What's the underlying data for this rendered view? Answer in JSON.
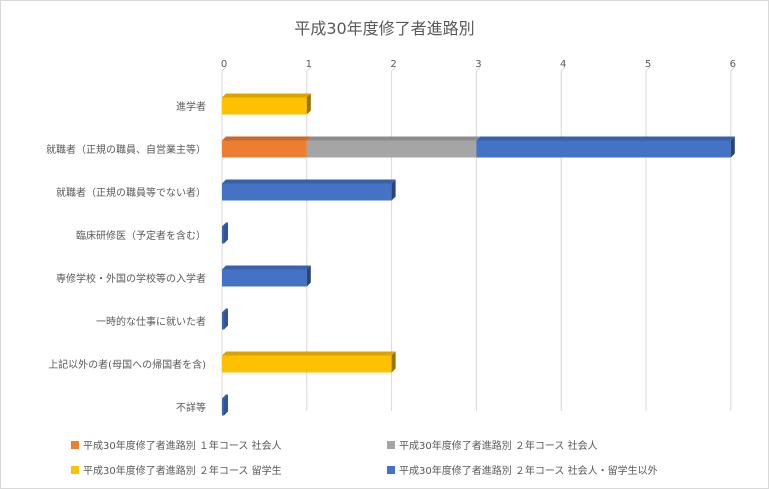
{
  "chart_data": {
    "type": "bar",
    "orientation": "horizontal",
    "stacked": true,
    "style": "3d",
    "title": "平成30年度修了者進路別",
    "categories": [
      "進学者",
      "就職者（正規の職員、自営業主等）",
      "就職者（正規の職員等でない者）",
      "臨床研修医（予定者を含む）",
      "専修学校・外国の学校等の入学者",
      "一時的な仕事に就いた者",
      "上記以外の者(母国への帰国者を含)",
      "不詳等"
    ],
    "xlim": [
      0,
      6
    ],
    "xticks": [
      "0",
      "1",
      "2",
      "3",
      "4",
      "5",
      "6"
    ],
    "grid": true,
    "legend_position": "bottom",
    "series": [
      {
        "name": "平成30年度修了者進路別 １年コース 社会人",
        "color": "#ED7D31",
        "values": [
          0,
          1,
          0,
          0,
          0,
          0,
          0,
          0
        ]
      },
      {
        "name": "平成30年度修了者進路別 ２年コース 社会人",
        "color": "#A5A5A5",
        "values": [
          0,
          2,
          0,
          0,
          0,
          0,
          0,
          0
        ]
      },
      {
        "name": "平成30年度修了者進路別 ２年コース 留学生",
        "color": "#FFC000",
        "values": [
          1,
          0,
          0,
          0,
          0,
          0,
          2,
          0
        ]
      },
      {
        "name": "平成30年度修了者進路別 ２年コース 社会人・留学生以外",
        "color": "#4472C4",
        "values": [
          0,
          3,
          2,
          0,
          1,
          0,
          0,
          0
        ]
      }
    ]
  }
}
